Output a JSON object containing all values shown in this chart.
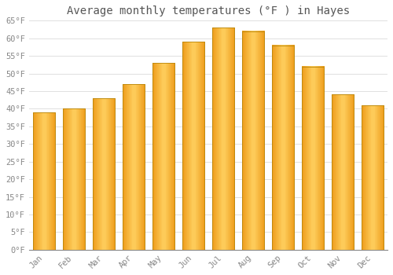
{
  "title": "Average monthly temperatures (°F ) in Hayes",
  "months": [
    "Jan",
    "Feb",
    "Mar",
    "Apr",
    "May",
    "Jun",
    "Jul",
    "Aug",
    "Sep",
    "Oct",
    "Nov",
    "Dec"
  ],
  "values": [
    39,
    40,
    43,
    47,
    53,
    59,
    63,
    62,
    58,
    52,
    44,
    41
  ],
  "bar_color_center": "#FFD060",
  "bar_color_edge": "#F0A020",
  "bar_outline_color": "#B8860B",
  "background_color": "#FFFFFF",
  "grid_color": "#E0E0E0",
  "text_color": "#888888",
  "title_color": "#555555",
  "ylim": [
    0,
    65
  ],
  "yticks": [
    0,
    5,
    10,
    15,
    20,
    25,
    30,
    35,
    40,
    45,
    50,
    55,
    60,
    65
  ],
  "ylabel_suffix": "°F",
  "title_fontsize": 10,
  "tick_fontsize": 7.5,
  "bar_width": 0.75
}
